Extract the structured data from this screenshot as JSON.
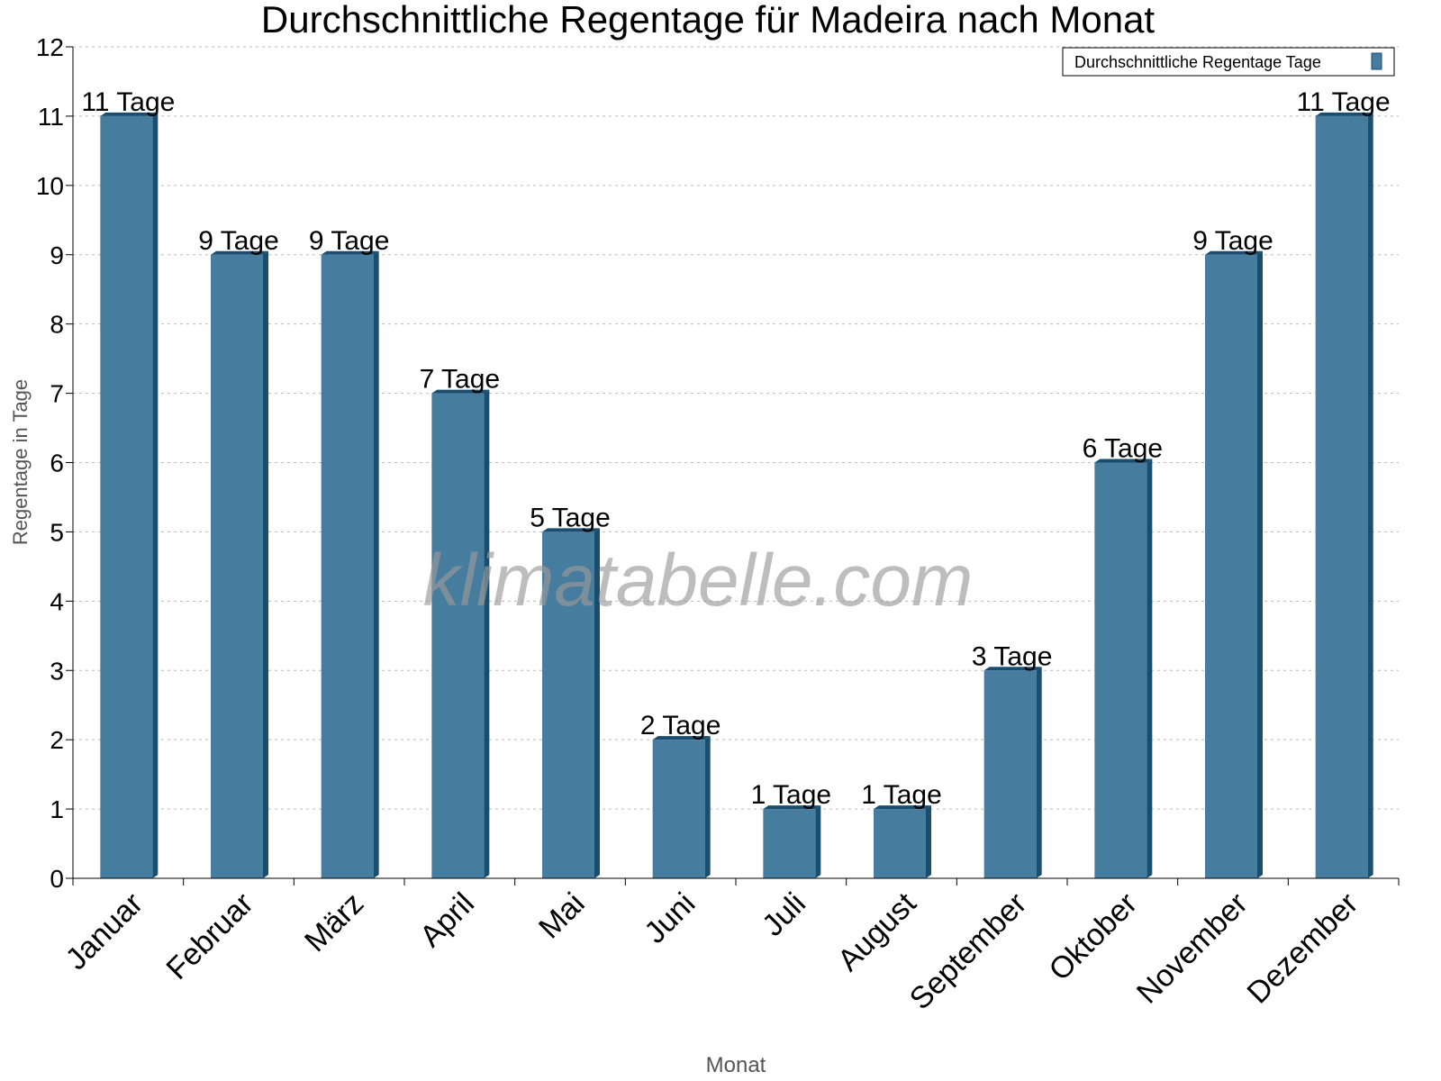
{
  "chart_data": {
    "type": "bar",
    "title": "Durchschnittliche Regentage für Madeira nach Monat",
    "xlabel": "Monat",
    "ylabel": "Regentage in Tage",
    "ylim": [
      0,
      12
    ],
    "yticks": [
      "0",
      "1",
      "2",
      "3",
      "4",
      "5",
      "6",
      "7",
      "8",
      "9",
      "10",
      "11",
      "12"
    ],
    "grid": true,
    "legend_placement": "top-right",
    "categories": [
      "Januar",
      "Februar",
      "März",
      "April",
      "Mai",
      "Juni",
      "Juli",
      "August",
      "September",
      "Oktober",
      "November",
      "Dezember"
    ],
    "series": [
      {
        "name": "Durchschnittliche Regentage Tage",
        "values": [
          11,
          9,
          9,
          7,
          5,
          2,
          1,
          1,
          3,
          6,
          9,
          11
        ],
        "labels": [
          "11 Tage",
          "9 Tage",
          "9 Tage",
          "7 Tage",
          "5 Tage",
          "2 Tage",
          "1 Tage",
          "1 Tage",
          "3 Tage",
          "6 Tage",
          "9 Tage",
          "11 Tage"
        ]
      }
    ],
    "colors": {
      "bar": "#467c9e",
      "bar_side": "#1a4d6e"
    },
    "watermark": "klimatabelle.com"
  }
}
